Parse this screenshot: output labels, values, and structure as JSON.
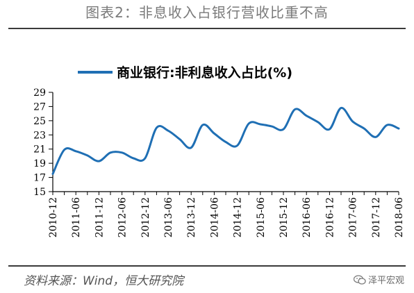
{
  "figure_title": "图表2：非息收入占银行营收比重不高",
  "source_note": "资料来源：Wind，恒大研究院",
  "watermark": "泽平宏观",
  "colors": {
    "series": "#1f6fb4",
    "axis": "#000000",
    "title": "#7a7a7a",
    "rule": "#3a3a3a"
  },
  "chart_data": {
    "type": "line",
    "title": "",
    "xlabel": "",
    "ylabel": "",
    "legend_position": "top",
    "grid": false,
    "ylim": [
      15,
      29
    ],
    "yticks": [
      15,
      17,
      19,
      21,
      23,
      25,
      27,
      29
    ],
    "x": [
      "2010-12",
      "2011-03",
      "2011-06",
      "2011-09",
      "2011-12",
      "2012-03",
      "2012-06",
      "2012-09",
      "2012-12",
      "2013-03",
      "2013-06",
      "2013-09",
      "2013-12",
      "2014-03",
      "2014-06",
      "2014-09",
      "2014-12",
      "2015-03",
      "2015-06",
      "2015-09",
      "2015-12",
      "2016-03",
      "2016-06",
      "2016-09",
      "2016-12",
      "2017-03",
      "2017-06",
      "2017-09",
      "2017-12",
      "2018-03",
      "2018-06"
    ],
    "xtick_labels": [
      "2010-12",
      "2011-06",
      "2011-12",
      "2012-06",
      "2012-12",
      "2013-06",
      "2013-12",
      "2014-06",
      "2014-12",
      "2015-06",
      "2015-12",
      "2016-06",
      "2016-12",
      "2017-06",
      "2017-12",
      "2018-06"
    ],
    "series": [
      {
        "name": "商业银行:非利息收入占比(%)",
        "values": [
          17.5,
          20.9,
          20.7,
          20.1,
          19.3,
          20.5,
          20.5,
          19.7,
          19.7,
          24.0,
          23.6,
          22.4,
          21.2,
          24.4,
          23.2,
          22.0,
          21.5,
          24.6,
          24.5,
          24.2,
          23.8,
          26.6,
          25.7,
          24.8,
          23.8,
          26.8,
          24.9,
          23.9,
          22.7,
          24.4,
          23.9
        ]
      }
    ]
  }
}
